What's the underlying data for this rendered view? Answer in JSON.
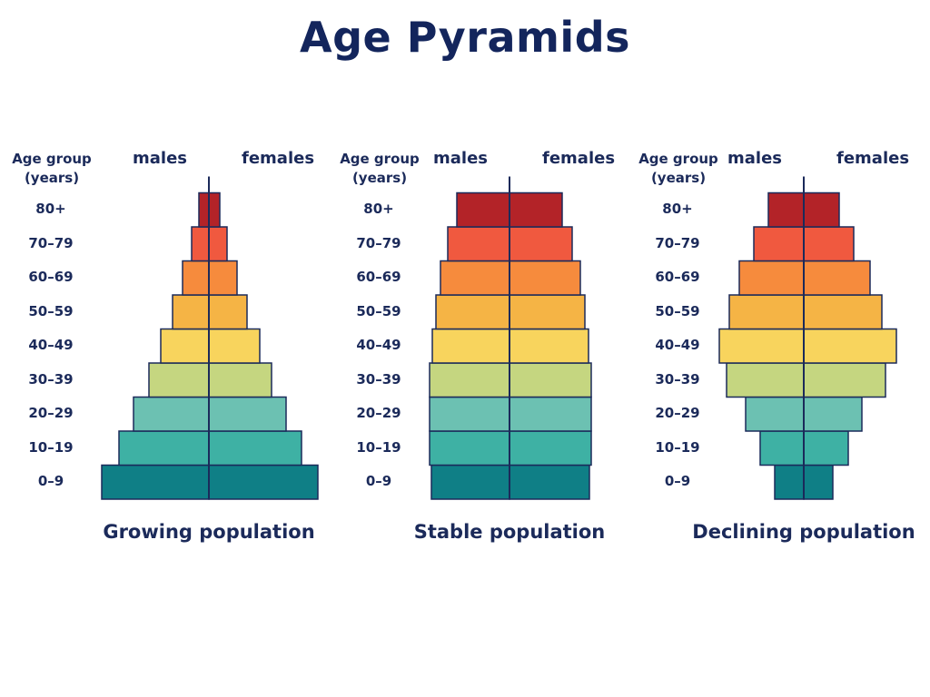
{
  "title": "Age Pyramids",
  "chart_data": [
    {
      "type": "bar",
      "orientation": "horizontal-pyramid",
      "title": "Growing population",
      "ylabel": "Age group\n(years)",
      "categories": [
        "0–9",
        "10–19",
        "20–29",
        "30–39",
        "40–49",
        "50–59",
        "60–69",
        "70–79",
        "80+"
      ],
      "series": [
        {
          "name": "males",
          "values": [
            118,
            99,
            83,
            66,
            53,
            40,
            29,
            19,
            11
          ]
        },
        {
          "name": "females",
          "values": [
            120,
            102,
            85,
            69,
            56,
            42,
            31,
            20,
            12
          ]
        }
      ],
      "colors": [
        "#0f7f86",
        "#3eb1a4",
        "#6cc1b2",
        "#c5d680",
        "#f8d45d",
        "#f5b445",
        "#f68b3d",
        "#f0593f",
        "#b32328"
      ],
      "xlim": [
        -125,
        125
      ],
      "grid": false
    },
    {
      "type": "bar",
      "orientation": "horizontal-pyramid",
      "title": "Stable population",
      "ylabel": "Age group\n(years)",
      "categories": [
        "0–9",
        "10–19",
        "20–29",
        "30–39",
        "40–49",
        "50–59",
        "60–69",
        "70–79",
        "80+"
      ],
      "series": [
        {
          "name": "males",
          "values": [
            86,
            88,
            88,
            88,
            85,
            81,
            76,
            68,
            58
          ]
        },
        {
          "name": "females",
          "values": [
            88,
            90,
            90,
            90,
            87,
            83,
            78,
            69,
            58
          ]
        }
      ],
      "colors": [
        "#0f7f86",
        "#3eb1a4",
        "#6cc1b2",
        "#c5d680",
        "#f8d45d",
        "#f5b445",
        "#f68b3d",
        "#f0593f",
        "#b32328"
      ],
      "xlim": [
        -125,
        125
      ],
      "grid": false
    },
    {
      "type": "bar",
      "orientation": "horizontal-pyramid",
      "title": "Declining population",
      "ylabel": "Age group\n(years)",
      "categories": [
        "0–9",
        "10–19",
        "20–29",
        "30–39",
        "40–49",
        "50–59",
        "60–69",
        "70–79",
        "80+"
      ],
      "series": [
        {
          "name": "males",
          "values": [
            32,
            48,
            64,
            85,
            93,
            82,
            71,
            55,
            39
          ]
        },
        {
          "name": "females",
          "values": [
            32,
            49,
            64,
            90,
            102,
            86,
            73,
            55,
            39
          ]
        }
      ],
      "colors": [
        "#0f7f86",
        "#3eb1a4",
        "#6cc1b2",
        "#c5d680",
        "#f8d45d",
        "#f5b445",
        "#f68b3d",
        "#f0593f",
        "#b32328"
      ],
      "xlim": [
        -125,
        125
      ],
      "grid": false
    }
  ]
}
